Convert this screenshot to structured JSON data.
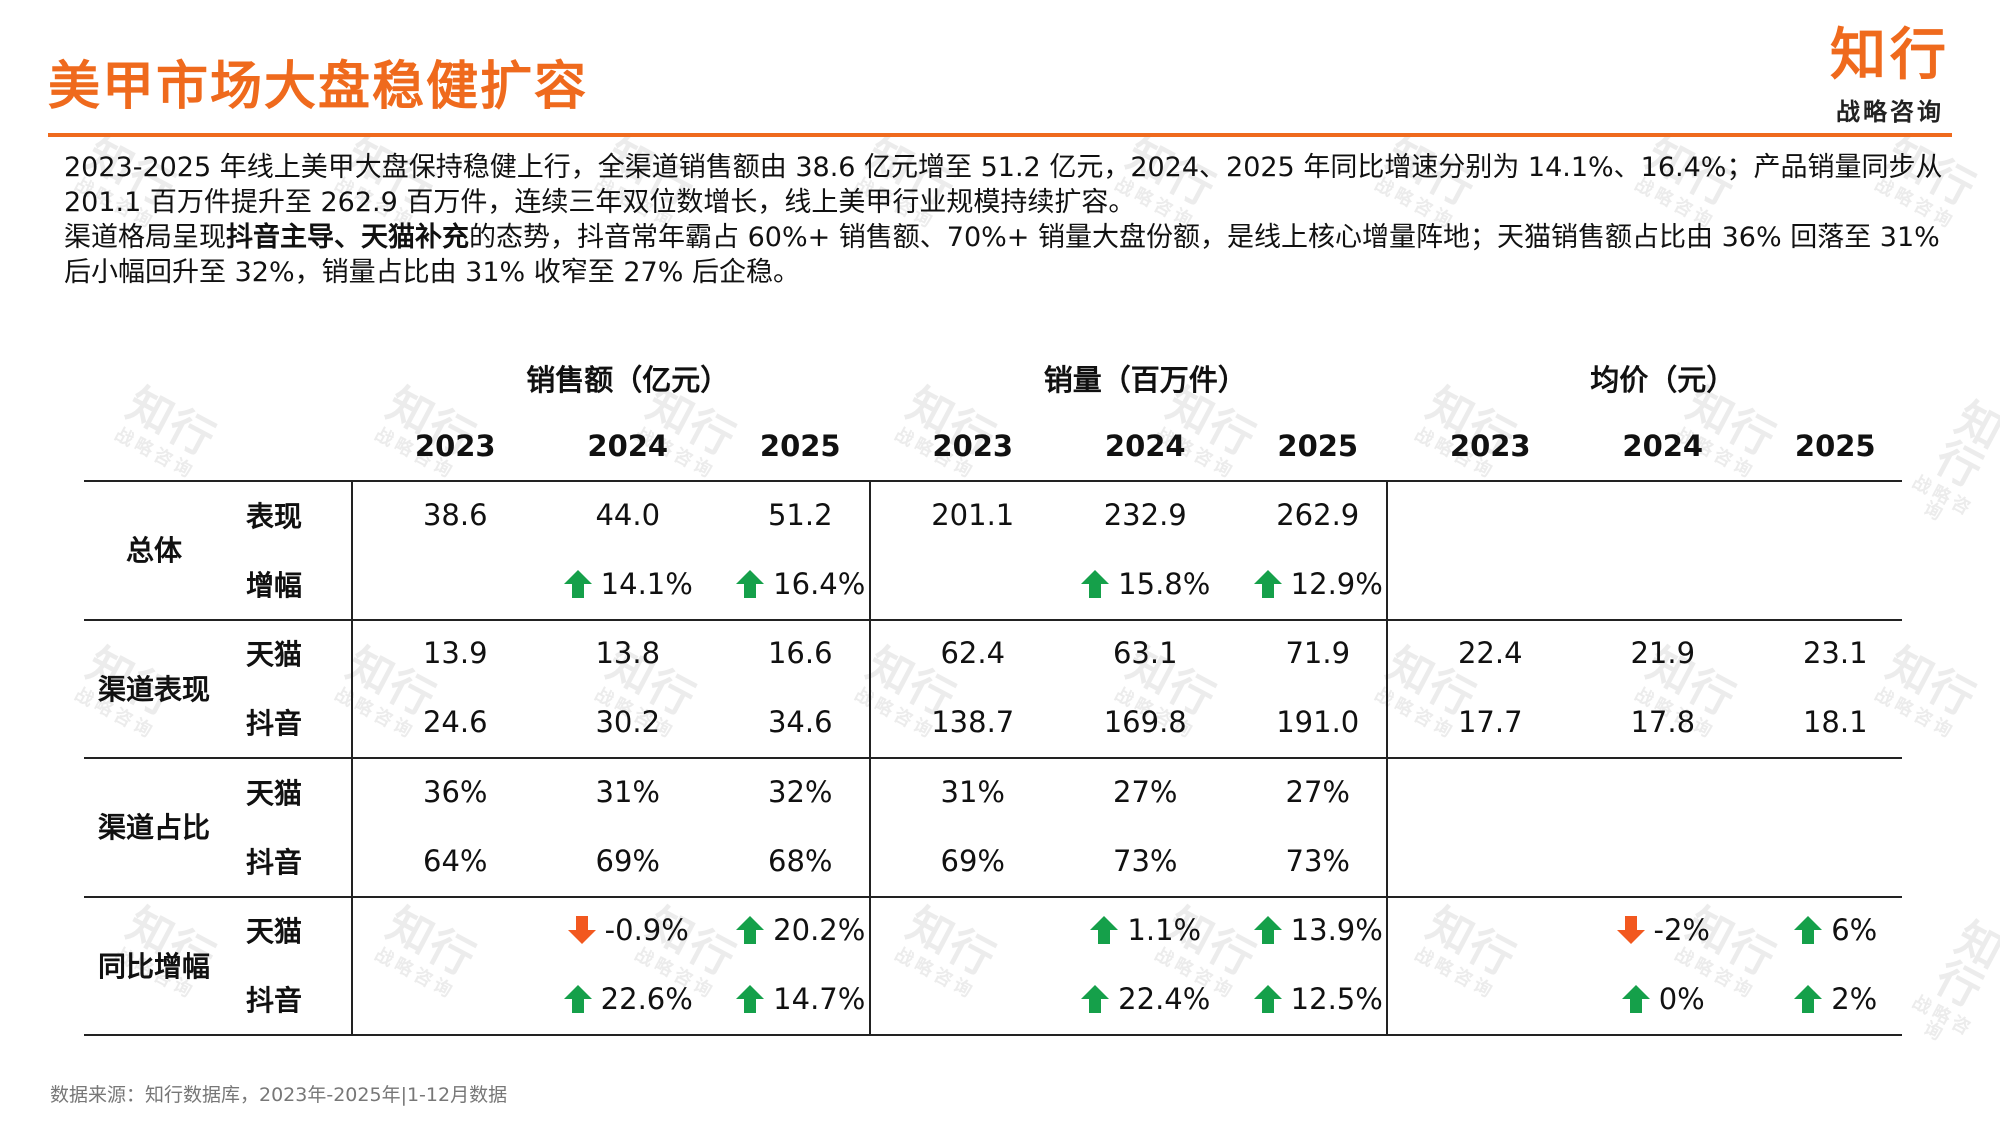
{
  "title": "美甲市场大盘稳健扩容",
  "logo": {
    "main": "知行",
    "sub": "战略咨询"
  },
  "watermark": {
    "main": "知行",
    "sub": "战略咨询"
  },
  "summary": {
    "p1": "2023-2025 年线上美甲大盘保持稳健上行，全渠道销售额由 38.6 亿元增至 51.2 亿元，2024、2025 年同比增速分别为 14.1%、16.4%；产品销量同步从 201.1 百万件提升至 262.9 百万件，连续三年双位数增长，线上美甲行业规模持续扩容。",
    "p2_pre": "渠道格局呈现",
    "p2_bold": "抖音主导、天猫补充",
    "p2_post": "的态势，抖音常年霸占 60%+ 销售额、70%+ 销量大盘份额，是线上核心增量阵地；天猫销售额占比由 36% 回落至 31% 后小幅回升至 32%，销量占比由 31% 收窄至 27% 后企稳。"
  },
  "table": {
    "groups": [
      "销售额（亿元）",
      "销量（百万件）",
      "均价（元）"
    ],
    "years": [
      "2023",
      "2024",
      "2025"
    ],
    "row_groups": [
      "总体",
      "渠道表现",
      "渠道占比",
      "同比增幅"
    ],
    "sub_labels": [
      [
        "表现",
        "增幅"
      ],
      [
        "天猫",
        "抖音"
      ],
      [
        "天猫",
        "抖音"
      ],
      [
        "天猫",
        "抖音"
      ]
    ],
    "rows": [
      [
        "38.6",
        "44.0",
        "51.2",
        "201.1",
        "232.9",
        "262.9",
        "",
        "",
        ""
      ],
      [
        "",
        "14.1%",
        "16.4%",
        "",
        "15.8%",
        "12.9%",
        "",
        "",
        ""
      ],
      [
        "13.9",
        "13.8",
        "16.6",
        "62.4",
        "63.1",
        "71.9",
        "22.4",
        "21.9",
        "23.1"
      ],
      [
        "24.6",
        "30.2",
        "34.6",
        "138.7",
        "169.8",
        "191.0",
        "17.7",
        "17.8",
        "18.1"
      ],
      [
        "36%",
        "31%",
        "32%",
        "31%",
        "27%",
        "27%",
        "",
        "",
        ""
      ],
      [
        "64%",
        "69%",
        "68%",
        "69%",
        "73%",
        "73%",
        "",
        "",
        ""
      ],
      [
        "",
        "-0.9%",
        "20.2%",
        "",
        "1.1%",
        "13.9%",
        "",
        "-2%",
        "6%"
      ],
      [
        "",
        "22.6%",
        "14.7%",
        "",
        "22.4%",
        "12.5%",
        "",
        "0%",
        "2%"
      ]
    ],
    "arrows": [
      [
        "",
        "",
        "",
        "",
        "",
        "",
        "",
        "",
        ""
      ],
      [
        "",
        "up",
        "up",
        "",
        "up",
        "up",
        "",
        "",
        ""
      ],
      [
        "",
        "",
        "",
        "",
        "",
        "",
        "",
        "",
        ""
      ],
      [
        "",
        "",
        "",
        "",
        "",
        "",
        "",
        "",
        ""
      ],
      [
        "",
        "",
        "",
        "",
        "",
        "",
        "",
        "",
        ""
      ],
      [
        "",
        "",
        "",
        "",
        "",
        "",
        "",
        "",
        ""
      ],
      [
        "",
        "down",
        "up",
        "",
        "up",
        "up",
        "",
        "down",
        "up"
      ],
      [
        "",
        "up",
        "up",
        "",
        "up",
        "up",
        "",
        "up",
        "up"
      ]
    ],
    "colors": {
      "up": "#15a04a",
      "down": "#f2581f"
    }
  },
  "source": "数据来源：知行数据库，2023年-2025年|1-12月数据"
}
